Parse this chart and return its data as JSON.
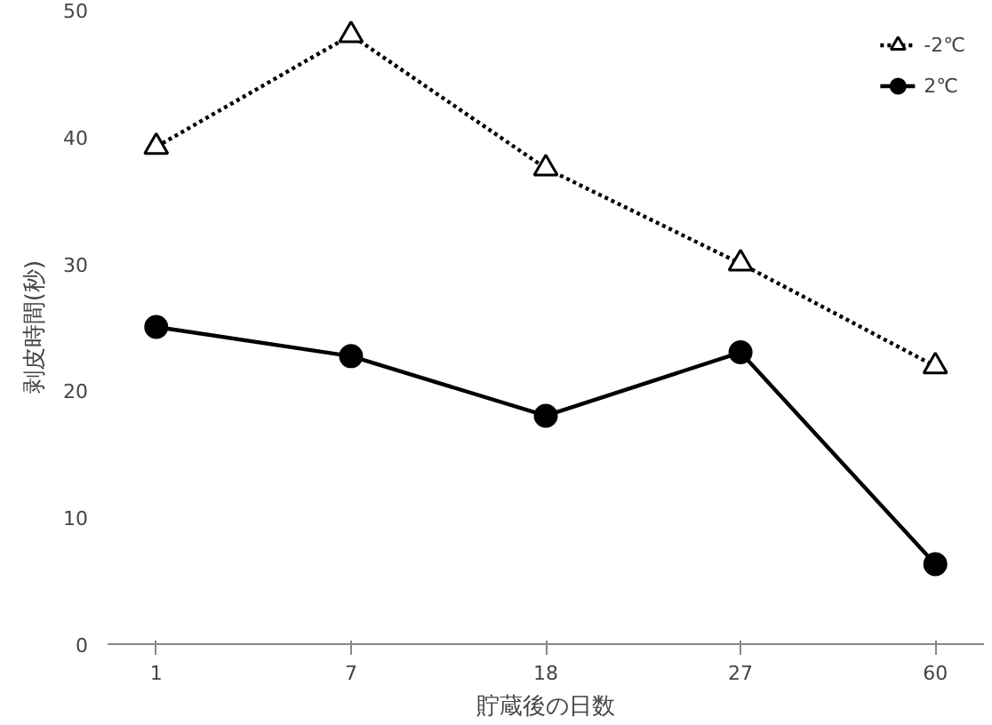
{
  "chart_data": {
    "type": "line",
    "xlabel": "貯蔵後の日数",
    "ylabel": "剥皮時間(秒)",
    "categories": [
      "1",
      "7",
      "18",
      "27",
      "60"
    ],
    "ylim": [
      0,
      50
    ],
    "yticks": [
      0,
      10,
      20,
      30,
      40,
      50
    ],
    "grid": false,
    "legend": "top right",
    "series": [
      {
        "name": "-2℃",
        "color": "#000000",
        "values": [
          39.2,
          48,
          37.5,
          30,
          21.9
        ],
        "marker": "triangle",
        "line_style": "dotted"
      },
      {
        "name": "2℃",
        "color": "#000000",
        "values": [
          25,
          22.7,
          18,
          23,
          6.3
        ],
        "marker": "circle",
        "line_style": "solid"
      }
    ]
  }
}
